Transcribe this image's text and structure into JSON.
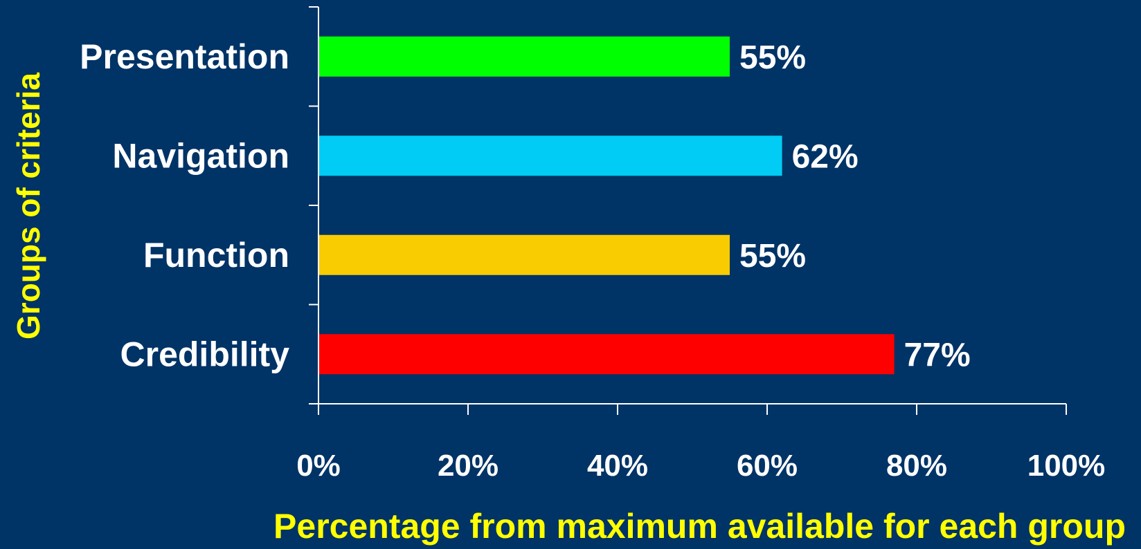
{
  "chart_data": {
    "type": "bar",
    "orientation": "horizontal",
    "categories": [
      "Presentation",
      "Navigation",
      "Function",
      "Credibility"
    ],
    "values": [
      55,
      62,
      55,
      77
    ],
    "value_labels": [
      "55%",
      "62%",
      "55%",
      "77%"
    ],
    "colors": [
      "#00ff00",
      "#00ccf5",
      "#f8cc00",
      "#ff0000"
    ],
    "xlabel": "Percentage from maximum available for each group",
    "ylabel": "Groups of criteria",
    "xlim": [
      0,
      100
    ],
    "xticks": [
      0,
      20,
      40,
      60,
      80,
      100
    ],
    "xtick_labels": [
      "0%",
      "20%",
      "40%",
      "60%",
      "80%",
      "100%"
    ],
    "grid": false,
    "legend": false,
    "background": "#003366",
    "axis_title_color": "#ffff00"
  }
}
